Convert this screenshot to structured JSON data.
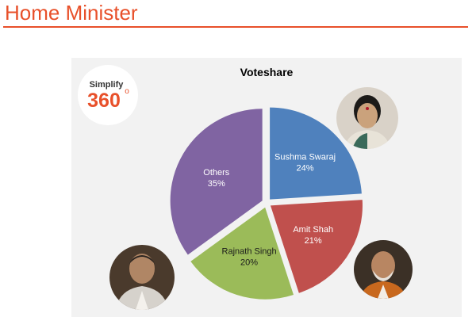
{
  "slide": {
    "title": "Home Minister"
  },
  "logo": {
    "line1": "Simplify",
    "line2": "360",
    "degree": "o"
  },
  "chart_data": {
    "type": "pie",
    "title": "Voteshare",
    "slices": [
      {
        "name": "Sushma Swaraj",
        "value": 24,
        "label": "24%",
        "color": "#4f81bd",
        "label_dark": false
      },
      {
        "name": "Amit Shah",
        "value": 21,
        "label": "21%",
        "color": "#c0504d",
        "label_dark": false
      },
      {
        "name": "Rajnath Singh",
        "value": 20,
        "label": "20%",
        "color": "#9bbb59",
        "label_dark": true
      },
      {
        "name": "Others",
        "value": 35,
        "label": "35%",
        "color": "#8064a2",
        "label_dark": false
      }
    ]
  },
  "avatars": [
    {
      "person": "Sushma Swaraj",
      "icon": "portrait-woman-icon"
    },
    {
      "person": "Amit Shah",
      "icon": "portrait-man-icon"
    },
    {
      "person": "Rajnath Singh",
      "icon": "portrait-man-icon"
    }
  ]
}
